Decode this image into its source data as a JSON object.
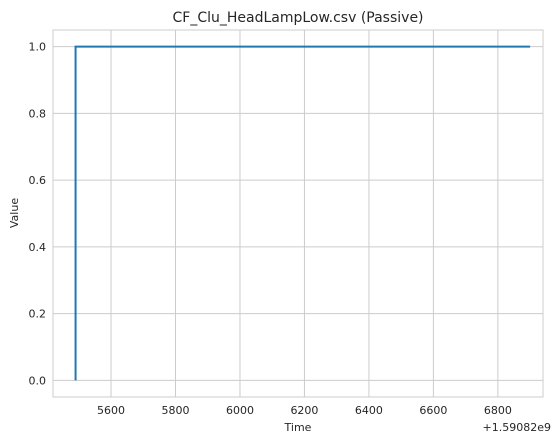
{
  "chart_data": {
    "type": "line",
    "title": "CF_Clu_HeadLampLow.csv (Passive)",
    "xlabel": "Time",
    "ylabel": "Value",
    "x_offset_label": "+1.59082e9",
    "xlim": [
      5420,
      6940
    ],
    "ylim": [
      -0.05,
      1.05
    ],
    "x_ticks": [
      5600,
      5800,
      6000,
      6200,
      6400,
      6600,
      6800
    ],
    "y_ticks": [
      0.0,
      0.2,
      0.4,
      0.6,
      0.8,
      1.0
    ],
    "x_tick_labels": [
      "5600",
      "5800",
      "6000",
      "6200",
      "6400",
      "6600",
      "6800"
    ],
    "y_tick_labels": [
      "0.0",
      "0.2",
      "0.4",
      "0.6",
      "0.8",
      "1.0"
    ],
    "grid": true,
    "series": [
      {
        "color": "#1f77b4",
        "x": [
          5490,
          5490,
          6900
        ],
        "y": [
          0.0,
          1.0,
          1.0
        ]
      }
    ]
  }
}
